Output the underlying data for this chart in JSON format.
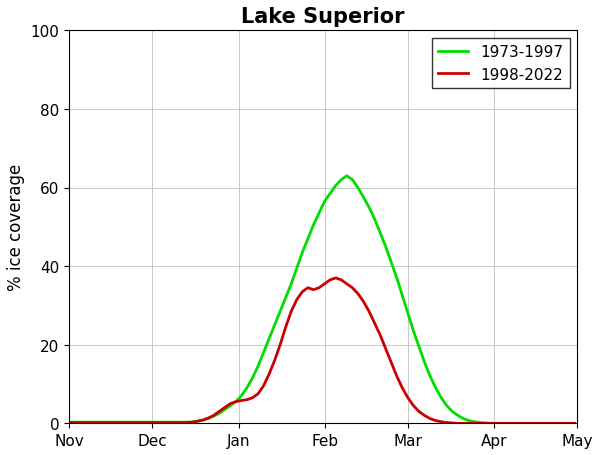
{
  "title": "Lake Superior",
  "ylabel": "% ice coverage",
  "ylim": [
    0,
    100
  ],
  "yticks": [
    0,
    20,
    40,
    60,
    80,
    100
  ],
  "x_labels": [
    "Nov",
    "Dec",
    "Jan",
    "Feb",
    "Mar",
    "Apr",
    "May"
  ],
  "legend_labels": [
    "1973-1997",
    "1998-2022"
  ],
  "color_before": "#00DD00",
  "color_after": "#CC0000",
  "linewidth": 2.0,
  "title_fontsize": 15,
  "label_fontsize": 12,
  "tick_fontsize": 11,
  "legend_fontsize": 11,
  "month_days": [
    0,
    30,
    61,
    92,
    122,
    153,
    183
  ],
  "green_curve_days": [
    0,
    2,
    4,
    6,
    8,
    10,
    12,
    14,
    16,
    18,
    20,
    22,
    24,
    26,
    28,
    30,
    32,
    34,
    36,
    38,
    40,
    42,
    44,
    46,
    48,
    50,
    52,
    54,
    56,
    58,
    60,
    62,
    64,
    66,
    68,
    70,
    72,
    74,
    76,
    78,
    80,
    82,
    84,
    86,
    88,
    90,
    92,
    94,
    96,
    98,
    100,
    102,
    104,
    106,
    108,
    110,
    112,
    114,
    116,
    118,
    120,
    122,
    124,
    126,
    128,
    130,
    132,
    134,
    136,
    138,
    140,
    142,
    144,
    146,
    148,
    150,
    152,
    154,
    156,
    158,
    160,
    162,
    164,
    166,
    168,
    170,
    172,
    174,
    176,
    178,
    180,
    182
  ],
  "green_curve_vals": [
    0.3,
    0.3,
    0.3,
    0.3,
    0.3,
    0.3,
    0.3,
    0.3,
    0.3,
    0.3,
    0.3,
    0.3,
    0.3,
    0.3,
    0.3,
    0.3,
    0.3,
    0.3,
    0.3,
    0.3,
    0.3,
    0.3,
    0.3,
    0.5,
    0.8,
    1.2,
    1.8,
    2.5,
    3.5,
    4.5,
    5.5,
    7.0,
    9.0,
    11.5,
    14.5,
    18.0,
    21.5,
    25.0,
    28.5,
    32.0,
    35.5,
    39.5,
    43.5,
    47.0,
    50.5,
    53.5,
    56.5,
    58.5,
    60.5,
    62.0,
    63.0,
    62.0,
    60.0,
    57.5,
    55.0,
    52.0,
    48.5,
    45.0,
    41.0,
    37.0,
    32.5,
    28.0,
    23.5,
    19.5,
    15.5,
    12.0,
    9.0,
    6.5,
    4.5,
    3.0,
    2.0,
    1.2,
    0.7,
    0.4,
    0.2,
    0.1,
    0.0,
    0.0,
    0.0,
    0.0,
    0.0,
    0.0,
    0.0,
    0.0,
    0.0,
    0.0,
    0.0,
    0.0,
    0.0,
    0.0,
    0.0,
    0.0
  ],
  "red_curve_days": [
    0,
    2,
    4,
    6,
    8,
    10,
    12,
    14,
    16,
    18,
    20,
    22,
    24,
    26,
    28,
    30,
    32,
    34,
    36,
    38,
    40,
    42,
    44,
    46,
    48,
    50,
    52,
    54,
    56,
    58,
    60,
    62,
    64,
    66,
    68,
    70,
    72,
    74,
    76,
    78,
    80,
    82,
    84,
    86,
    88,
    90,
    92,
    94,
    96,
    98,
    100,
    102,
    104,
    106,
    108,
    110,
    112,
    114,
    116,
    118,
    120,
    122,
    124,
    126,
    128,
    130,
    132,
    134,
    136,
    138,
    140,
    142,
    144,
    146,
    148,
    150,
    152,
    154,
    156,
    158,
    160,
    162,
    164,
    166,
    168,
    170,
    172,
    174,
    176,
    178,
    180,
    182
  ],
  "red_curve_vals": [
    0.2,
    0.2,
    0.2,
    0.2,
    0.2,
    0.2,
    0.2,
    0.2,
    0.2,
    0.2,
    0.2,
    0.2,
    0.2,
    0.2,
    0.2,
    0.2,
    0.2,
    0.2,
    0.2,
    0.2,
    0.2,
    0.2,
    0.3,
    0.5,
    0.8,
    1.3,
    2.0,
    3.0,
    4.0,
    5.0,
    5.5,
    5.8,
    6.0,
    6.5,
    7.5,
    9.5,
    12.5,
    16.0,
    20.0,
    24.5,
    28.5,
    31.5,
    33.5,
    34.5,
    34.0,
    34.5,
    35.5,
    36.5,
    37.0,
    36.5,
    35.5,
    34.5,
    33.0,
    31.0,
    28.5,
    25.5,
    22.5,
    19.0,
    15.5,
    12.0,
    9.0,
    6.5,
    4.5,
    3.0,
    2.0,
    1.2,
    0.7,
    0.4,
    0.2,
    0.1,
    0.0,
    0.0,
    0.0,
    0.0,
    0.0,
    0.0,
    0.0,
    0.0,
    0.0,
    0.0,
    0.0,
    0.0,
    0.0,
    0.0,
    0.0,
    0.0,
    0.0,
    0.0,
    0.0,
    0.0,
    0.0,
    0.0
  ]
}
